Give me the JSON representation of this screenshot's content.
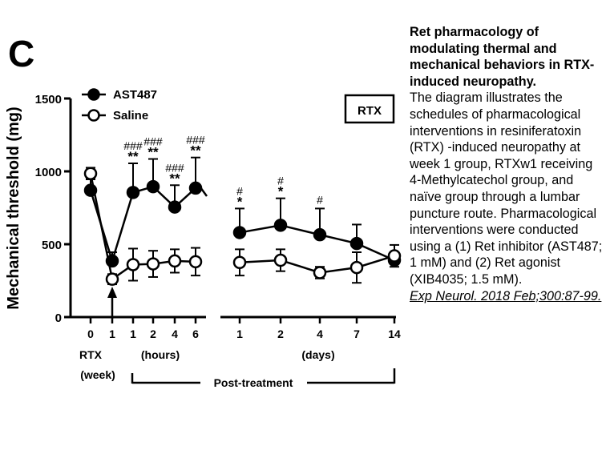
{
  "panel_letter": "C",
  "caption": {
    "title": "Ret pharmacology of modulating thermal and mechanical behaviors in RTX-induced neuropathy.",
    "body": "The diagram illustrates the schedules of pharmacological interventions in resiniferatoxin (RTX) -induced neuropathy at week 1 group, RTXw1 receiving 4-Methylcatechol group, and naïve group through a lumbar puncture route. Pharmacological interventions were conducted using a (1) Ret inhibitor (AST487; 1 mM) and (2) Ret agonist (XIB4035; 1.5 mM).",
    "reference": "Exp Neurol. 2018 Feb;300:87-99."
  },
  "chart_data": {
    "type": "line",
    "ylabel": "Mechanical threshold (mg)",
    "ylim": [
      0,
      1500
    ],
    "yticks": [
      "0",
      "500",
      "1000",
      "1500"
    ],
    "categories": [
      "0",
      "1",
      "1",
      "2",
      "4",
      "6",
      "1",
      "2",
      "4",
      "7",
      "14"
    ],
    "segments": [
      [
        0,
        5
      ],
      [
        6,
        10
      ]
    ],
    "group_labels": {
      "rtx": "RTX",
      "week": "(week)",
      "hours": "(hours)",
      "days": "(days)",
      "post_treatment": "Post-treatment"
    },
    "box_label": "RTX",
    "series": [
      {
        "name": "AST487",
        "marker": "filled-circle",
        "values": [
          870,
          385,
          855,
          895,
          755,
          885,
          580,
          630,
          565,
          505,
          390
        ],
        "errors": [
          80,
          60,
          200,
          190,
          150,
          210,
          165,
          185,
          180,
          130,
          55
        ]
      },
      {
        "name": "Saline",
        "marker": "open-circle",
        "values": [
          985,
          260,
          360,
          365,
          385,
          380,
          375,
          390,
          305,
          340,
          420
        ],
        "errors": [
          40,
          35,
          110,
          90,
          80,
          95,
          90,
          75,
          40,
          105,
          75
        ]
      }
    ],
    "annotations": [
      {
        "index": 2,
        "stars": "**",
        "hashes": "###"
      },
      {
        "index": 3,
        "stars": "**",
        "hashes": "###"
      },
      {
        "index": 4,
        "stars": "**",
        "hashes": "###"
      },
      {
        "index": 5,
        "stars": "**",
        "hashes": "###"
      },
      {
        "index": 6,
        "stars": "*",
        "hashes": "#"
      },
      {
        "index": 7,
        "stars": "*",
        "hashes": "#"
      },
      {
        "index": 8,
        "stars": "",
        "hashes": "#"
      }
    ],
    "arrow_at_index": 1
  }
}
